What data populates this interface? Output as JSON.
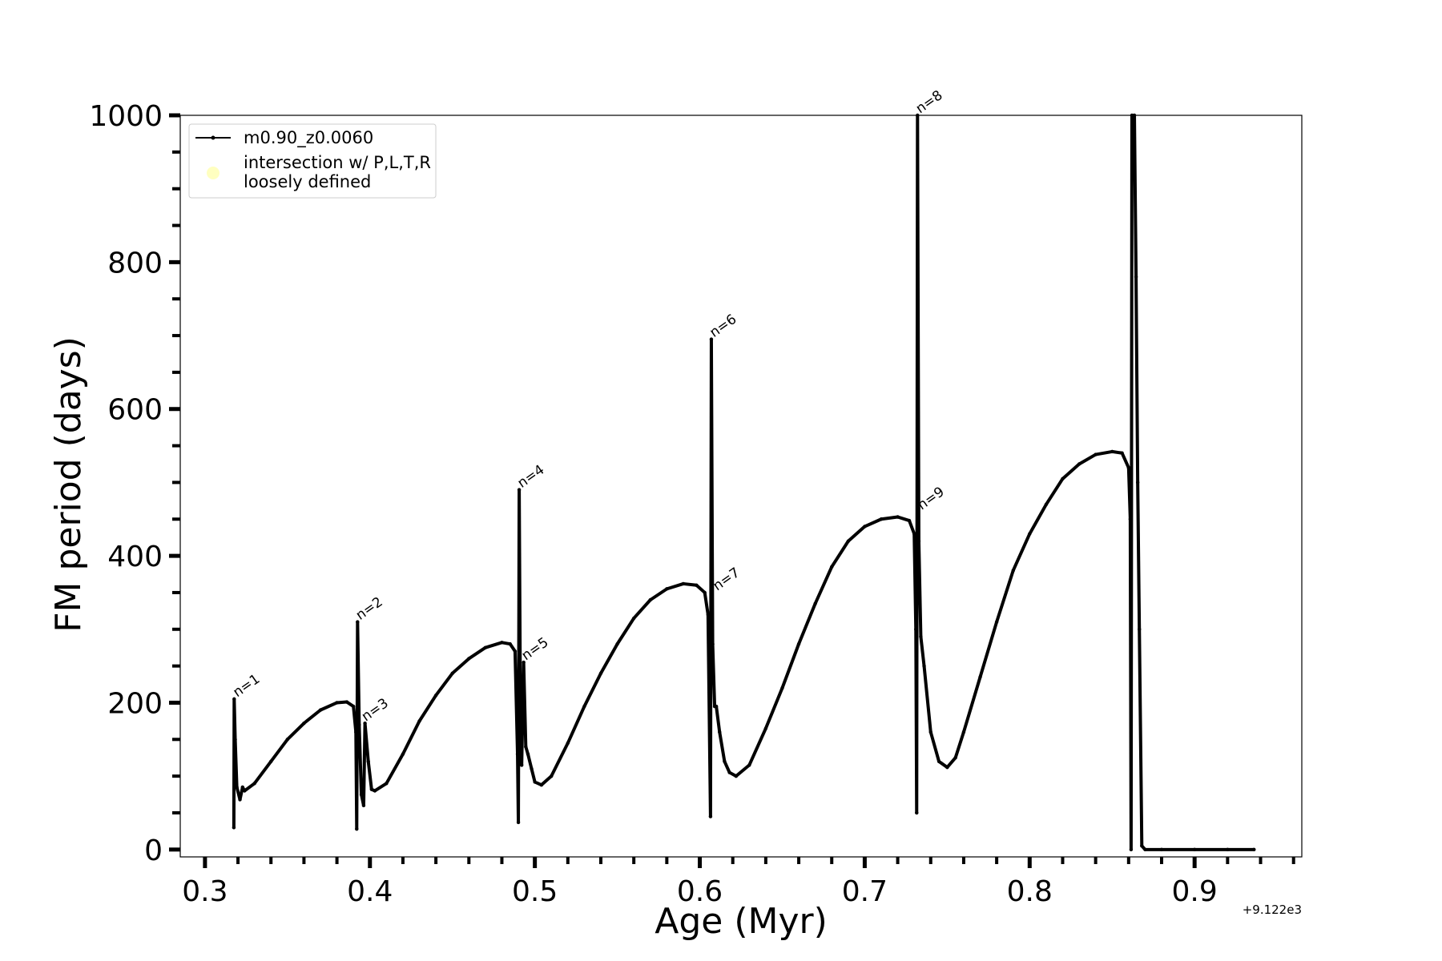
{
  "chart_data": {
    "type": "line",
    "title": "",
    "xlabel": "Age (Myr)",
    "ylabel": "FM period (days)",
    "xlim": [
      0.285,
      0.965
    ],
    "ylim": [
      -10,
      1000
    ],
    "x_offset_label": "+9.122e3",
    "xticks": [
      0.3,
      0.4,
      0.5,
      0.6,
      0.7,
      0.8,
      0.9
    ],
    "xtick_labels": [
      "0.3",
      "0.4",
      "0.5",
      "0.6",
      "0.7",
      "0.8",
      "0.9"
    ],
    "yticks": [
      0,
      200,
      400,
      600,
      800,
      1000
    ],
    "ytick_labels": [
      "0",
      "200",
      "400",
      "600",
      "800",
      "1000"
    ],
    "grid": false,
    "legend": {
      "placement": "upper-left",
      "entries": [
        {
          "label": "m0.90_z0.0060",
          "color": "#000000",
          "marker": "line-point"
        },
        {
          "label_lines": [
            "intersection w/ P,L,T,R",
            "loosely defined"
          ],
          "color": "#ffffc0",
          "marker": "circle"
        }
      ]
    },
    "series": [
      {
        "name": "m0.90_z0.0060",
        "color": "#000000",
        "points": [
          [
            0.3175,
            30
          ],
          [
            0.3177,
            205
          ],
          [
            0.3183,
            150
          ],
          [
            0.3193,
            85
          ],
          [
            0.3212,
            68
          ],
          [
            0.3228,
            85
          ],
          [
            0.324,
            80
          ],
          [
            0.33,
            90
          ],
          [
            0.34,
            120
          ],
          [
            0.35,
            150
          ],
          [
            0.36,
            172
          ],
          [
            0.37,
            190
          ],
          [
            0.38,
            200
          ],
          [
            0.386,
            201
          ],
          [
            0.39,
            195
          ],
          [
            0.3915,
            160
          ],
          [
            0.392,
            28
          ],
          [
            0.3925,
            310
          ],
          [
            0.3935,
            170
          ],
          [
            0.3948,
            75
          ],
          [
            0.3962,
            60
          ],
          [
            0.397,
            172
          ],
          [
            0.399,
            120
          ],
          [
            0.401,
            82
          ],
          [
            0.403,
            80
          ],
          [
            0.41,
            90
          ],
          [
            0.42,
            130
          ],
          [
            0.43,
            175
          ],
          [
            0.44,
            210
          ],
          [
            0.45,
            240
          ],
          [
            0.46,
            260
          ],
          [
            0.47,
            275
          ],
          [
            0.48,
            282
          ],
          [
            0.485,
            280
          ],
          [
            0.488,
            270
          ],
          [
            0.4895,
            130
          ],
          [
            0.49,
            37
          ],
          [
            0.4905,
            490
          ],
          [
            0.4912,
            200
          ],
          [
            0.492,
            115
          ],
          [
            0.4932,
            255
          ],
          [
            0.4945,
            140
          ],
          [
            0.4958,
            130
          ],
          [
            0.498,
            110
          ],
          [
            0.5,
            92
          ],
          [
            0.504,
            88
          ],
          [
            0.51,
            100
          ],
          [
            0.52,
            145
          ],
          [
            0.53,
            195
          ],
          [
            0.54,
            240
          ],
          [
            0.55,
            280
          ],
          [
            0.56,
            315
          ],
          [
            0.57,
            340
          ],
          [
            0.58,
            355
          ],
          [
            0.59,
            362
          ],
          [
            0.598,
            360
          ],
          [
            0.603,
            350
          ],
          [
            0.605,
            320
          ],
          [
            0.6065,
            45
          ],
          [
            0.607,
            695
          ],
          [
            0.6078,
            280
          ],
          [
            0.609,
            195
          ],
          [
            0.61,
            195
          ],
          [
            0.612,
            160
          ],
          [
            0.615,
            120
          ],
          [
            0.618,
            105
          ],
          [
            0.622,
            100
          ],
          [
            0.63,
            115
          ],
          [
            0.64,
            165
          ],
          [
            0.65,
            220
          ],
          [
            0.66,
            280
          ],
          [
            0.67,
            335
          ],
          [
            0.68,
            385
          ],
          [
            0.69,
            420
          ],
          [
            0.7,
            440
          ],
          [
            0.71,
            450
          ],
          [
            0.72,
            453
          ],
          [
            0.727,
            448
          ],
          [
            0.73,
            430
          ],
          [
            0.731,
            300
          ],
          [
            0.7315,
            50
          ],
          [
            0.732,
            1000
          ],
          [
            0.7328,
            420
          ],
          [
            0.734,
            290
          ],
          [
            0.736,
            250
          ],
          [
            0.74,
            160
          ],
          [
            0.745,
            120
          ],
          [
            0.75,
            112
          ],
          [
            0.755,
            125
          ],
          [
            0.76,
            160
          ],
          [
            0.77,
            235
          ],
          [
            0.78,
            310
          ],
          [
            0.79,
            380
          ],
          [
            0.8,
            430
          ],
          [
            0.81,
            470
          ],
          [
            0.82,
            505
          ],
          [
            0.83,
            525
          ],
          [
            0.84,
            538
          ],
          [
            0.85,
            542
          ],
          [
            0.856,
            540
          ],
          [
            0.86,
            520
          ],
          [
            0.861,
            450
          ],
          [
            0.8615,
            0
          ],
          [
            0.862,
            1000
          ],
          [
            0.8635,
            1000
          ],
          [
            0.8645,
            780
          ],
          [
            0.8655,
            500
          ],
          [
            0.8665,
            300
          ],
          [
            0.868,
            5
          ],
          [
            0.87,
            0
          ],
          [
            0.88,
            0
          ],
          [
            0.9,
            0
          ],
          [
            0.92,
            0
          ],
          [
            0.936,
            0
          ]
        ]
      }
    ],
    "annotations": [
      {
        "text": "n=1",
        "x": 0.3185,
        "y": 205
      },
      {
        "text": "n=2",
        "x": 0.393,
        "y": 310
      },
      {
        "text": "n=3",
        "x": 0.3965,
        "y": 172
      },
      {
        "text": "n=4",
        "x": 0.491,
        "y": 490
      },
      {
        "text": "n=5",
        "x": 0.4935,
        "y": 255
      },
      {
        "text": "n=6",
        "x": 0.6075,
        "y": 695
      },
      {
        "text": "n=7",
        "x": 0.6095,
        "y": 350
      },
      {
        "text": "n=8",
        "x": 0.7325,
        "y": 1000
      },
      {
        "text": "n=9",
        "x": 0.7335,
        "y": 460
      }
    ]
  }
}
